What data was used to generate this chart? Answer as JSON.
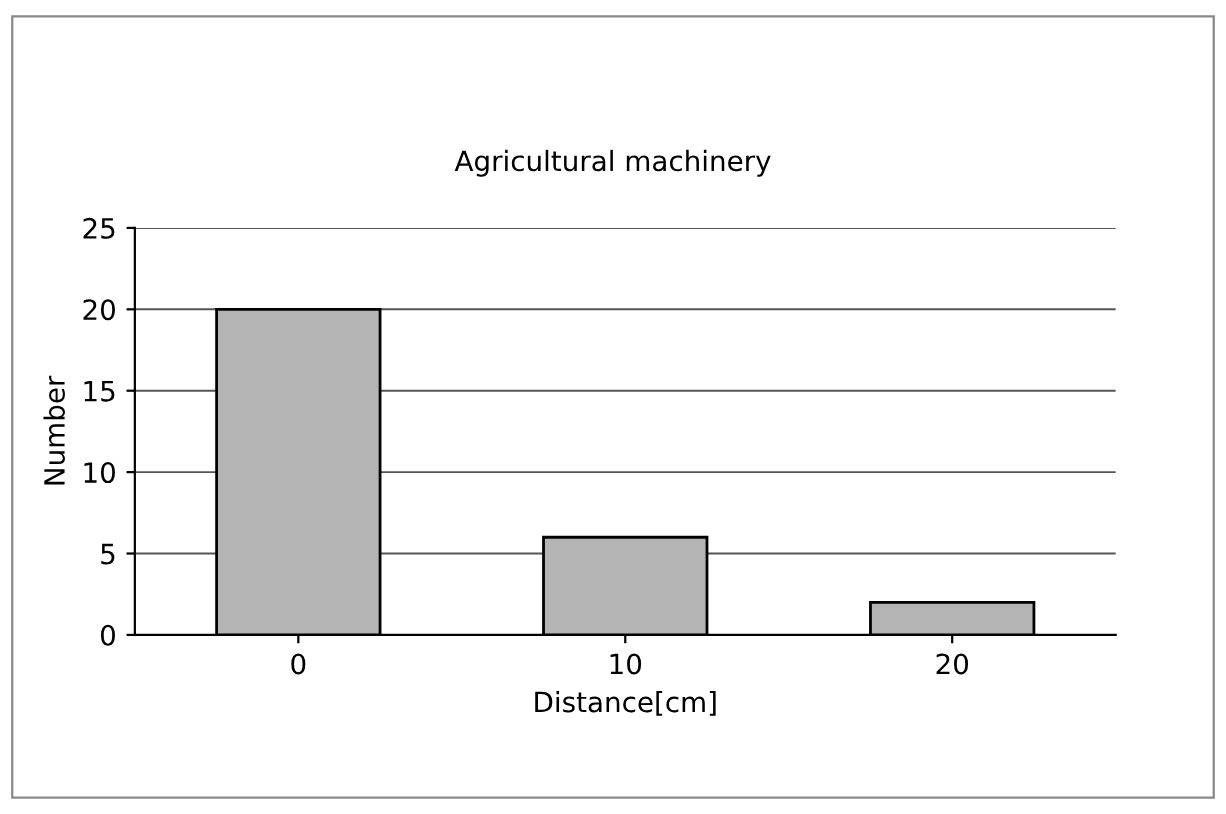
{
  "chart_data": {
    "type": "bar",
    "title": "Agricultural machinery",
    "xlabel": "Distance[cm]",
    "ylabel": "Number",
    "categories": [
      "0",
      "10",
      "20"
    ],
    "values": [
      20,
      6,
      2
    ],
    "color": "#b4b4b4",
    "ylim": [
      0,
      25
    ],
    "yticks": [
      0,
      5,
      10,
      15,
      20,
      25
    ],
    "grid": "y"
  }
}
